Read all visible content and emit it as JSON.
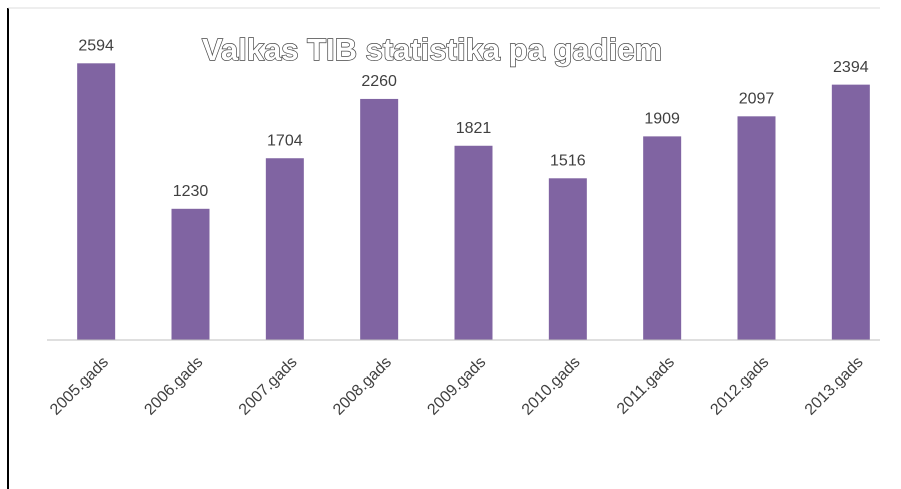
{
  "chart_data": {
    "type": "bar",
    "title": "Valkas TIB statistika pa gadiem",
    "categories": [
      "2005.gads",
      "2006.gads",
      "2007.gads",
      "2008.gads",
      "2009.gads",
      "2010.gads",
      "2011.gads",
      "2012.gads",
      "2013.gads"
    ],
    "values": [
      2594,
      1230,
      1704,
      2260,
      1821,
      1516,
      1909,
      2097,
      2394
    ],
    "color": "#8064a2",
    "ylim": [
      0,
      3000
    ]
  }
}
